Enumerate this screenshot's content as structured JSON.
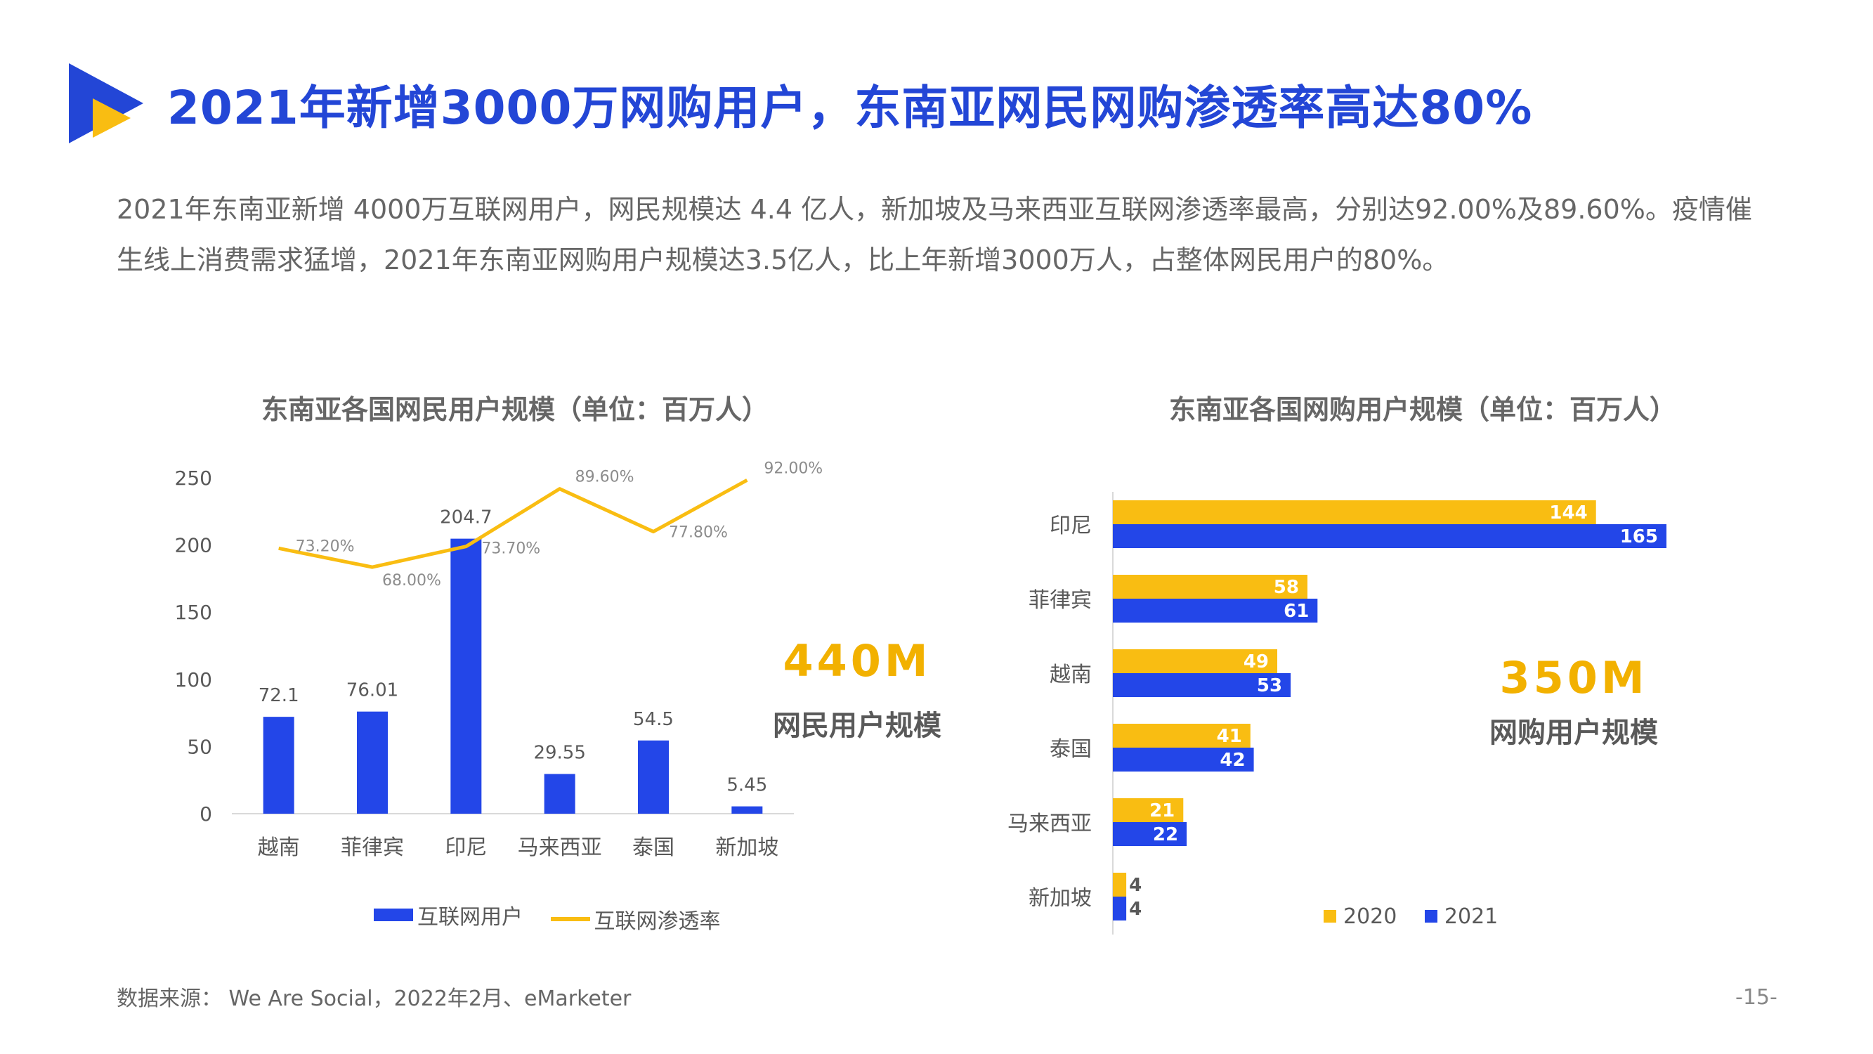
{
  "header": {
    "title": "2021年新增3000万网购用户，东南亚网民网购渗透率高达80%"
  },
  "intro": {
    "text": "2021年东南亚新增 4000万互联网用户，网民规模达 4.4 亿人，新加坡及马来西亚互联网渗透率最高，分别达92.00%及89.60%。疫情催生线上消费需求猛增，2021年东南亚网购用户规模达3.5亿人，比上年新增3000万人，占整体网民用户的80%。"
  },
  "colors": {
    "brand_blue": "#2346d6",
    "bar_blue": "#2346e8",
    "accent_yellow": "#f9bd12",
    "kpi_yellow": "#f2b100"
  },
  "chart_data": [
    {
      "type": "bar",
      "title": "东南亚各国网民用户规模（单位：百万人）",
      "categories": [
        "越南",
        "菲律宾",
        "印尼",
        "马来西亚",
        "泰国",
        "新加坡"
      ],
      "series": [
        {
          "name": "互联网用户",
          "type": "bar",
          "values": [
            72.1,
            76.01,
            204.7,
            29.55,
            54.5,
            5.45
          ],
          "labels": [
            "72.1",
            "76.01",
            "204.7",
            "29.55",
            "54.5",
            "5.45"
          ]
        },
        {
          "name": "互联网渗透率",
          "type": "line",
          "values": [
            73.2,
            68.0,
            73.7,
            89.6,
            77.8,
            92.0
          ],
          "labels": [
            "73.20%",
            "68.00%",
            "73.70%",
            "89.60%",
            "77.80%",
            "92.00%"
          ]
        }
      ],
      "ylim": [
        0,
        250
      ],
      "yticks": [
        0,
        50,
        100,
        150,
        200,
        250
      ],
      "ytick_labels": [
        "0",
        "50",
        "100",
        "150",
        "200",
        "250"
      ],
      "grid": false,
      "legend": "bottom",
      "kpi": {
        "value": "440M",
        "label": "网民用户规模"
      }
    },
    {
      "type": "bar",
      "orientation": "horizontal",
      "title": "东南亚各国网购用户规模（单位：百万人）",
      "categories": [
        "印尼",
        "菲律宾",
        "越南",
        "泰国",
        "马来西亚",
        "新加坡"
      ],
      "series": [
        {
          "name": "2020",
          "values": [
            144,
            58,
            49,
            41,
            21,
            4
          ],
          "labels": [
            "144",
            "58",
            "49",
            "41",
            "21",
            "4"
          ]
        },
        {
          "name": "2021",
          "values": [
            165,
            61,
            53,
            42,
            22,
            4
          ],
          "labels": [
            "165",
            "61",
            "53",
            "42",
            "22",
            "4"
          ]
        }
      ],
      "xlim": [
        0,
        165
      ],
      "grid": false,
      "legend": "bottom",
      "kpi": {
        "value": "350M",
        "label": "网购用户规模"
      }
    }
  ],
  "footer": {
    "source": "数据来源： We Are Social，2022年2月、eMarketer",
    "page": "-15-"
  }
}
